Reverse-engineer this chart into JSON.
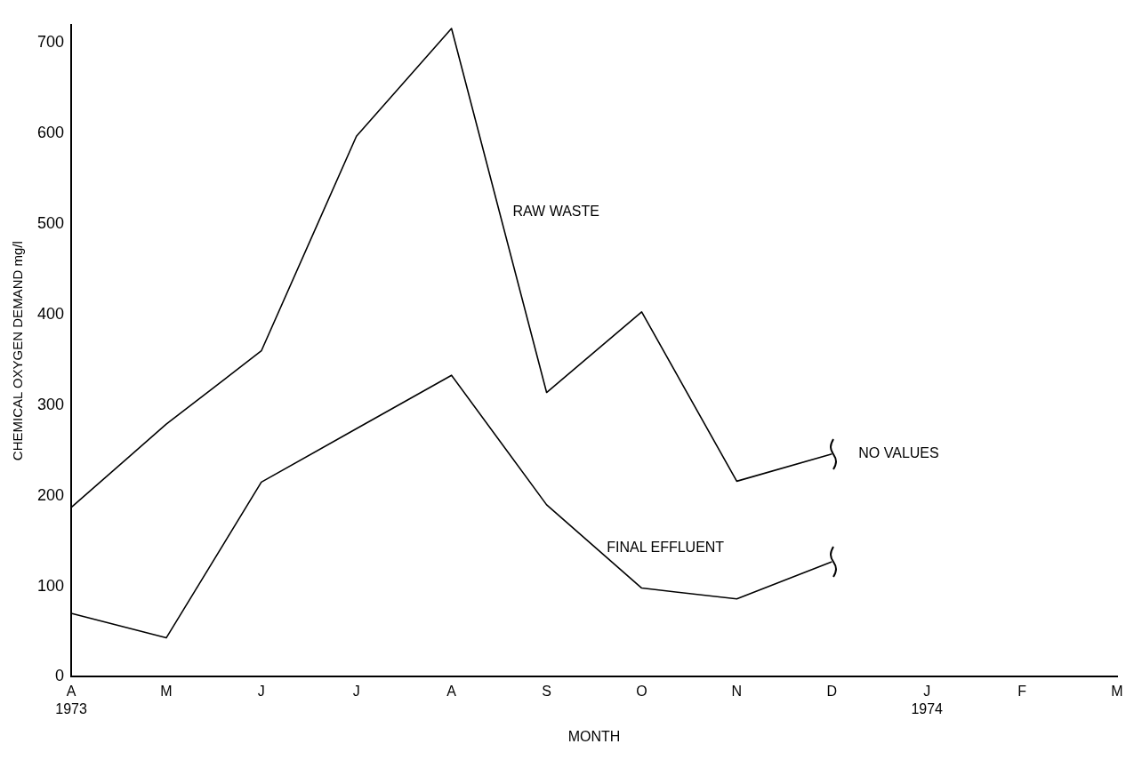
{
  "chart_data": {
    "type": "line",
    "xlabel": "MONTH",
    "ylabel": "CHEMICAL OXYGEN DEMAND mg/l",
    "categories": [
      "A\n1973",
      "M",
      "J",
      "J",
      "A",
      "S",
      "O",
      "N",
      "D",
      "J\n1974",
      "F",
      "M"
    ],
    "series": [
      {
        "name": "RAW WASTE",
        "color": "#000000",
        "values": [
          187,
          279,
          360,
          597,
          716,
          314,
          403,
          216,
          246,
          null,
          null,
          null
        ]
      },
      {
        "name": "FINAL EFFLUENT",
        "color": "#000000",
        "values": [
          70,
          43,
          215,
          274,
          333,
          190,
          98,
          86,
          127,
          null,
          null,
          null
        ]
      }
    ],
    "ylim": [
      0,
      720
    ],
    "yticks": [
      0,
      100,
      200,
      300,
      400,
      500,
      600,
      700
    ],
    "grid": false,
    "legend": false,
    "marker": "none",
    "line_style": "solid",
    "annotations": [
      "NO VALUES"
    ]
  }
}
